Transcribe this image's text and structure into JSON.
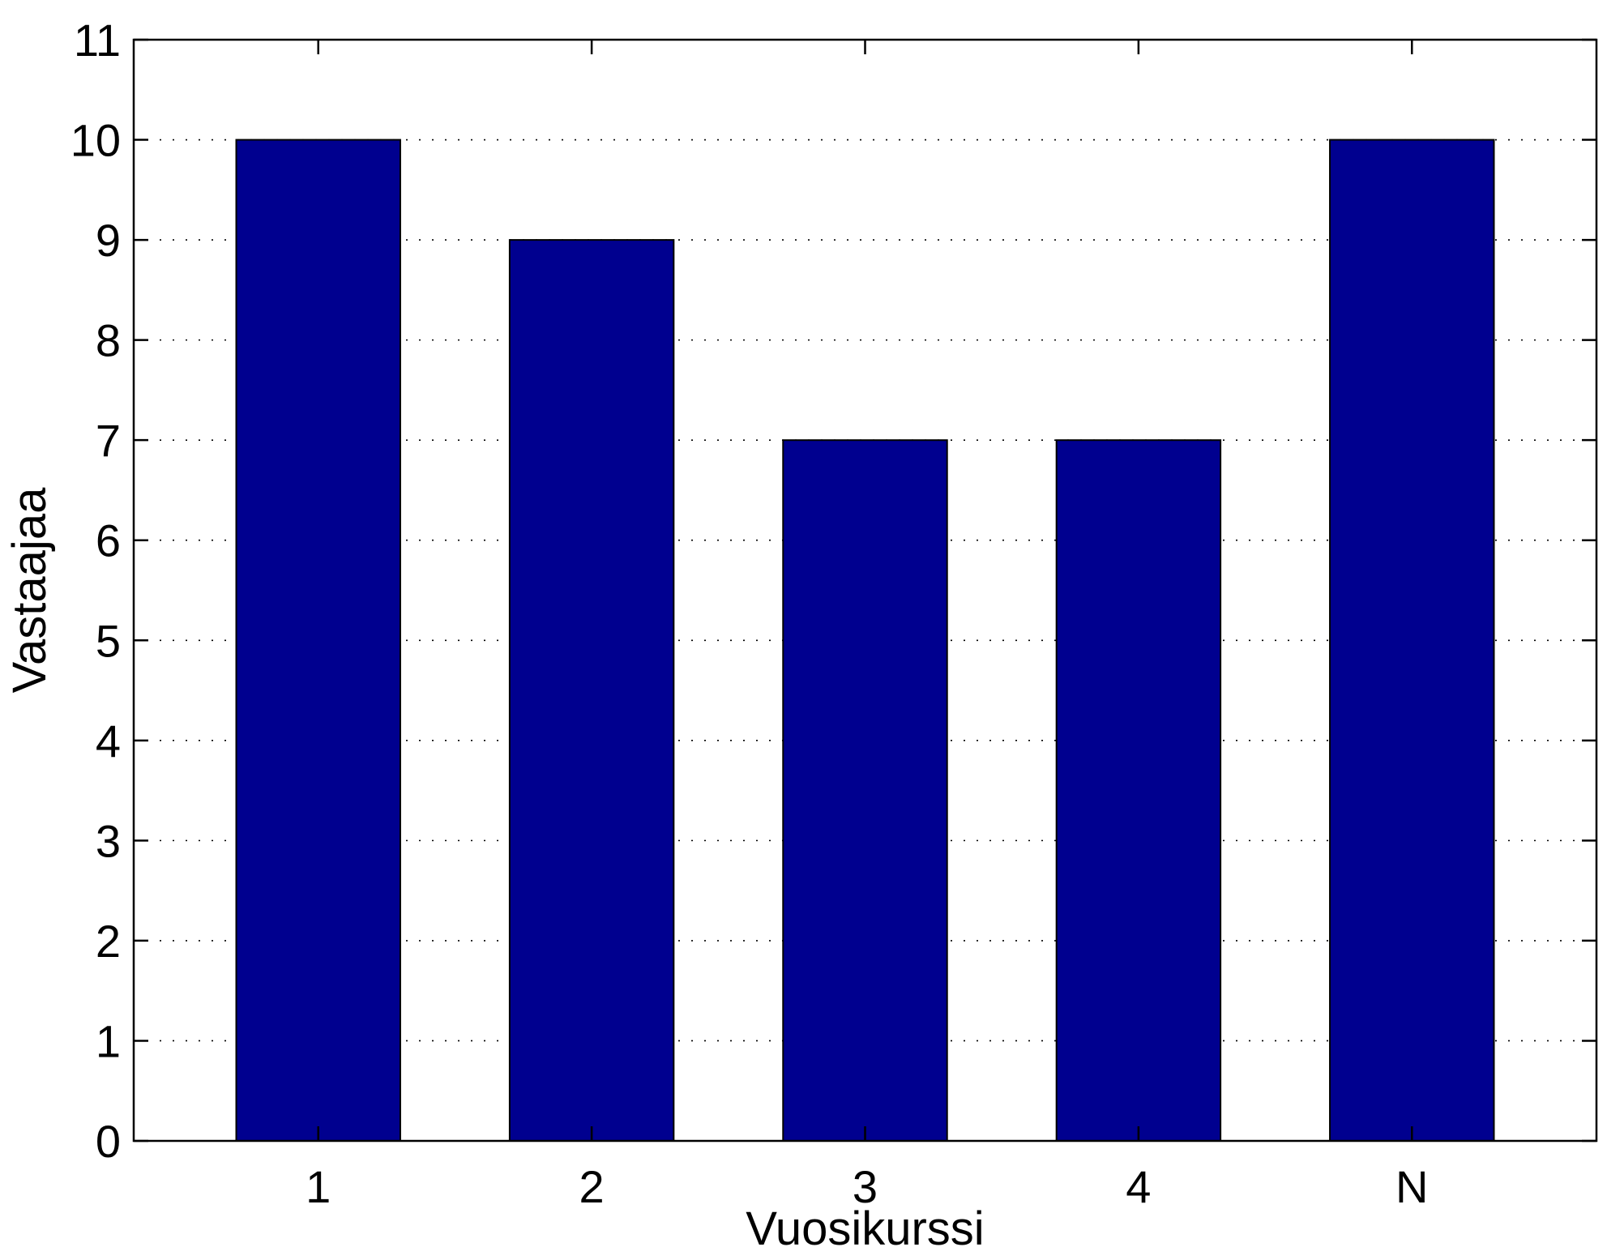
{
  "chart_data": {
    "type": "bar",
    "categories": [
      "1",
      "2",
      "3",
      "4",
      "N"
    ],
    "values": [
      10,
      9,
      7,
      7,
      10
    ],
    "xlabel": "Vuosikurssi",
    "ylabel": "Vastaajaa",
    "ylim": [
      0,
      11
    ],
    "yticks": [
      0,
      1,
      2,
      3,
      4,
      5,
      6,
      7,
      8,
      9,
      10,
      11
    ],
    "grid": "horizontal-dotted",
    "bar_color": "#00008f",
    "bar_edge_color": "#000000"
  }
}
